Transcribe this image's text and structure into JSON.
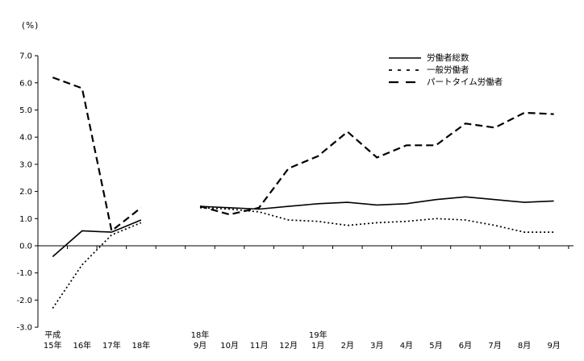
{
  "chart_data": {
    "type": "line",
    "title": "",
    "unit_label": "(%)",
    "ylabel": "(%)",
    "ylim": [
      -3.0,
      7.0
    ],
    "ytick_step": 1.0,
    "grid": false,
    "legend_position": "top-right",
    "line_color": "#000000",
    "background_color": "#ffffff",
    "categories": [
      "15年",
      "16年",
      "17年",
      "18年",
      "",
      "9月",
      "10月",
      "11月",
      "12月",
      "1月",
      "2月",
      "3月",
      "4月",
      "5月",
      "6月",
      "7月",
      "8月",
      "9月"
    ],
    "x_axis_top_labels": [
      {
        "index": 0,
        "label": "平成"
      },
      {
        "index": 5,
        "label": "18年"
      },
      {
        "index": 9,
        "label": "19年"
      }
    ],
    "series": [
      {
        "name": "労働者総数",
        "style": "solid",
        "values": [
          -0.4,
          0.55,
          0.5,
          0.95,
          null,
          1.45,
          1.4,
          1.35,
          1.45,
          1.55,
          1.6,
          1.5,
          1.55,
          1.7,
          1.8,
          1.7,
          1.6,
          1.65
        ]
      },
      {
        "name": "一般労働者",
        "style": "dotted",
        "values": [
          -2.3,
          -0.7,
          0.4,
          0.85,
          null,
          1.4,
          1.35,
          1.25,
          0.95,
          0.9,
          0.75,
          0.85,
          0.9,
          1.0,
          0.95,
          0.75,
          0.5,
          0.5
        ]
      },
      {
        "name": "パートタイム労働者",
        "style": "dashed",
        "values": [
          6.2,
          5.8,
          0.55,
          1.4,
          null,
          1.45,
          1.15,
          1.4,
          2.85,
          3.3,
          4.2,
          3.25,
          3.7,
          3.7,
          4.5,
          4.35,
          4.9,
          4.85
        ]
      }
    ]
  }
}
